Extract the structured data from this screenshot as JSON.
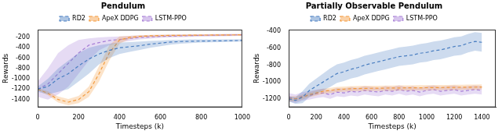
{
  "chart_data": [
    {
      "type": "line",
      "title": "Pendulum",
      "x_label": "Timesteps (k)",
      "y_label": "Rewards",
      "legend": "top",
      "grid": false,
      "xlim": [
        0,
        1000
      ],
      "xticks": [
        0,
        200,
        400,
        600,
        800,
        1000
      ],
      "ylim": [
        -1550,
        -50
      ],
      "yticks": [
        -1400,
        -1200,
        -1000,
        -800,
        -600,
        -400,
        -200
      ],
      "x": [
        0,
        50,
        100,
        150,
        200,
        250,
        300,
        350,
        400,
        450,
        500,
        550,
        600,
        650,
        700,
        750,
        800,
        850,
        900,
        950,
        1000
      ],
      "series": [
        {
          "name": "RD2",
          "color": "#4a7fc1",
          "line_style": "dashed",
          "values": [
            -1200,
            -1150,
            -1000,
            -900,
            -750,
            -620,
            -520,
            -450,
            -400,
            -380,
            -360,
            -330,
            -310,
            -290,
            -280,
            -275,
            -270,
            -268,
            -265,
            -262,
            -260
          ],
          "lower": [
            -1250,
            -1300,
            -1250,
            -1200,
            -1050,
            -900,
            -720,
            -600,
            -520,
            -480,
            -440,
            -400,
            -370,
            -340,
            -320,
            -310,
            -300,
            -295,
            -290,
            -285,
            -280
          ],
          "upper": [
            -1150,
            -1000,
            -800,
            -650,
            -500,
            -400,
            -350,
            -320,
            -300,
            -290,
            -280,
            -270,
            -260,
            -250,
            -245,
            -240,
            -240,
            -240,
            -240,
            -238,
            -235
          ]
        },
        {
          "name": "ApeX DDPG",
          "color": "#f39a3c",
          "line_style": "dashed",
          "values": [
            -1200,
            -1280,
            -1400,
            -1450,
            -1400,
            -1250,
            -900,
            -500,
            -250,
            -200,
            -180,
            -170,
            -165,
            -162,
            -160,
            -158,
            -156,
            -155,
            -154,
            -152,
            -150
          ],
          "lower": [
            -1220,
            -1320,
            -1460,
            -1510,
            -1470,
            -1350,
            -1050,
            -650,
            -320,
            -230,
            -200,
            -190,
            -185,
            -180,
            -178,
            -175,
            -172,
            -170,
            -170,
            -168,
            -165
          ],
          "upper": [
            -1180,
            -1240,
            -1340,
            -1390,
            -1330,
            -1150,
            -750,
            -350,
            -180,
            -170,
            -160,
            -150,
            -148,
            -145,
            -143,
            -142,
            -140,
            -140,
            -138,
            -137,
            -135
          ]
        },
        {
          "name": "LSTM-PPO",
          "color": "#a77fd6",
          "line_style": "dashed",
          "values": [
            -1200,
            -1100,
            -900,
            -700,
            -500,
            -350,
            -300,
            -260,
            -240,
            -220,
            -200,
            -190,
            -180,
            -175,
            -170,
            -165,
            -160,
            -158,
            -155,
            -152,
            -150
          ],
          "lower": [
            -1350,
            -1400,
            -1300,
            -1150,
            -900,
            -650,
            -450,
            -350,
            -300,
            -270,
            -240,
            -225,
            -210,
            -200,
            -195,
            -190,
            -185,
            -180,
            -178,
            -175,
            -172
          ],
          "upper": [
            -1050,
            -800,
            -500,
            -350,
            -250,
            -220,
            -200,
            -190,
            -180,
            -170,
            -160,
            -155,
            -150,
            -148,
            -145,
            -142,
            -140,
            -138,
            -136,
            -134,
            -132
          ]
        }
      ]
    },
    {
      "type": "line",
      "title": "Partially Observable Pendulum",
      "x_label": "Timesteps (k)",
      "y_label": "Rewards",
      "legend": "top",
      "grid": false,
      "xlim": [
        0,
        1500
      ],
      "xticks": [
        0,
        200,
        400,
        600,
        800,
        1000,
        1200,
        1400
      ],
      "ylim": [
        -1300,
        -380
      ],
      "yticks": [
        -1200,
        -1000,
        -800,
        -600,
        -400
      ],
      "x": [
        0,
        50,
        100,
        150,
        200,
        250,
        300,
        350,
        400,
        450,
        500,
        550,
        600,
        650,
        700,
        750,
        800,
        850,
        900,
        950,
        1000,
        1050,
        1100,
        1150,
        1200,
        1250,
        1300,
        1350,
        1400
      ],
      "series": [
        {
          "name": "RD2",
          "color": "#4a7fc1",
          "line_style": "dashed",
          "values": [
            -1200,
            -1220,
            -1180,
            -1100,
            -1050,
            -1000,
            -950,
            -900,
            -880,
            -850,
            -830,
            -800,
            -780,
            -760,
            -740,
            -720,
            -700,
            -690,
            -680,
            -660,
            -650,
            -630,
            -620,
            -600,
            -580,
            -570,
            -540,
            -520,
            -530
          ],
          "lower": [
            -1230,
            -1260,
            -1250,
            -1180,
            -1140,
            -1100,
            -1060,
            -1010,
            -990,
            -960,
            -940,
            -910,
            -890,
            -870,
            -850,
            -830,
            -810,
            -800,
            -790,
            -770,
            -760,
            -740,
            -730,
            -710,
            -690,
            -680,
            -650,
            -630,
            -640
          ],
          "upper": [
            -1170,
            -1180,
            -1110,
            -1020,
            -960,
            -900,
            -840,
            -790,
            -770,
            -740,
            -720,
            -690,
            -670,
            -650,
            -630,
            -610,
            -590,
            -580,
            -570,
            -550,
            -540,
            -520,
            -510,
            -490,
            -470,
            -460,
            -430,
            -410,
            -420
          ]
        },
        {
          "name": "ApeX DDPG",
          "color": "#f39a3c",
          "line_style": "dashed",
          "values": [
            -1200,
            -1200,
            -1180,
            -1150,
            -1130,
            -1110,
            -1100,
            -1090,
            -1085,
            -1080,
            -1078,
            -1076,
            -1075,
            -1074,
            -1073,
            -1072,
            -1071,
            -1070,
            -1070,
            -1069,
            -1068,
            -1067,
            -1066,
            -1065,
            -1064,
            -1063,
            -1062,
            -1061,
            -1060
          ],
          "lower": [
            -1230,
            -1230,
            -1210,
            -1180,
            -1160,
            -1140,
            -1130,
            -1120,
            -1115,
            -1110,
            -1108,
            -1106,
            -1105,
            -1104,
            -1103,
            -1102,
            -1101,
            -1100,
            -1100,
            -1099,
            -1098,
            -1097,
            -1096,
            -1095,
            -1094,
            -1093,
            -1092,
            -1091,
            -1090
          ],
          "upper": [
            -1170,
            -1170,
            -1150,
            -1120,
            -1100,
            -1080,
            -1070,
            -1060,
            -1055,
            -1050,
            -1048,
            -1046,
            -1045,
            -1044,
            -1043,
            -1042,
            -1041,
            -1040,
            -1040,
            -1039,
            -1038,
            -1037,
            -1036,
            -1035,
            -1034,
            -1033,
            -1032,
            -1031,
            -1030
          ]
        },
        {
          "name": "LSTM-PPO",
          "color": "#a77fd6",
          "line_style": "dashed",
          "values": [
            -1180,
            -1200,
            -1170,
            -1160,
            -1140,
            -1130,
            -1150,
            -1120,
            -1130,
            -1110,
            -1120,
            -1100,
            -1110,
            -1120,
            -1100,
            -1110,
            -1090,
            -1110,
            -1100,
            -1120,
            -1100,
            -1090,
            -1110,
            -1100,
            -1090,
            -1110,
            -1100,
            -1090,
            -1100
          ],
          "lower": [
            -1230,
            -1250,
            -1220,
            -1210,
            -1190,
            -1180,
            -1200,
            -1170,
            -1180,
            -1160,
            -1170,
            -1150,
            -1160,
            -1170,
            -1150,
            -1160,
            -1140,
            -1160,
            -1150,
            -1170,
            -1150,
            -1140,
            -1160,
            -1150,
            -1140,
            -1160,
            -1150,
            -1140,
            -1150
          ],
          "upper": [
            -1130,
            -1150,
            -1120,
            -1110,
            -1090,
            -1080,
            -1100,
            -1070,
            -1080,
            -1060,
            -1070,
            -1050,
            -1060,
            -1070,
            -1050,
            -1060,
            -1040,
            -1060,
            -1050,
            -1070,
            -1050,
            -1040,
            -1060,
            -1050,
            -1040,
            -1060,
            -1050,
            -1040,
            -1050
          ]
        }
      ]
    }
  ]
}
